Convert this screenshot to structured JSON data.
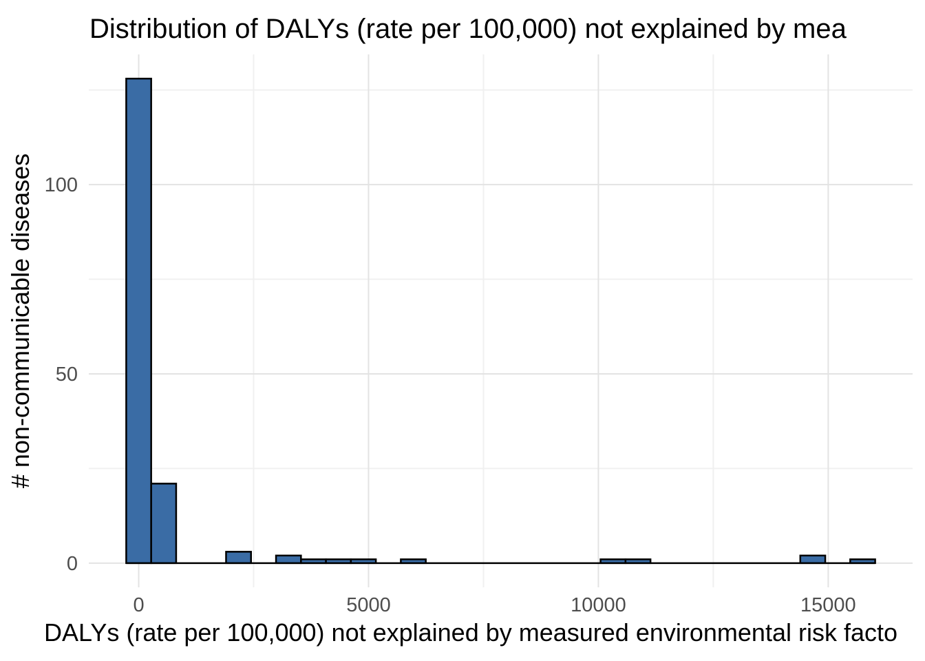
{
  "chart_data": {
    "type": "bar",
    "subtype": "histogram",
    "title": "Distribution of DALYs (rate per 100,000) not explained by mea",
    "xlabel": "DALYs (rate per 100,000) not explained by measured environmental risk facto",
    "ylabel": "# non-communicable diseases",
    "bin_width": 543.1,
    "bin_centers": [
      0,
      543,
      1086,
      1629,
      2172,
      2716,
      3259,
      3802,
      4345,
      4888,
      5431,
      5974,
      6517,
      7060,
      7603,
      8147,
      8690,
      9233,
      9776,
      10319,
      10862,
      11405,
      11948,
      12491,
      13034,
      13578,
      14121,
      14664,
      15207,
      15750
    ],
    "counts": [
      128,
      21,
      0,
      0,
      3,
      0,
      2,
      1,
      1,
      1,
      0,
      1,
      0,
      0,
      0,
      0,
      0,
      0,
      0,
      1,
      1,
      0,
      0,
      0,
      0,
      0,
      0,
      2,
      0,
      1
    ],
    "x_tick_values": [
      0,
      5000,
      10000,
      15000
    ],
    "x_tick_labels": [
      "0",
      "5000",
      "10000",
      "15000"
    ],
    "x_minor_values": [
      2500,
      7500,
      12500
    ],
    "y_tick_values": [
      0,
      50,
      100
    ],
    "y_tick_labels": [
      "0",
      "50",
      "100"
    ],
    "y_minor_values": [
      25,
      75,
      125
    ],
    "xlim": [
      -1086,
      16836
    ],
    "ylim": [
      -6.4,
      134.4
    ],
    "grid": "on",
    "legend": "none",
    "colors": {
      "bar_fill": "#3a6ca5",
      "bar_stroke": "#000000",
      "grid_major": "#e3e3e3",
      "grid_minor": "#f0f0f0",
      "tick_label": "#4d4d4d",
      "text": "#000000",
      "background": "#ffffff"
    }
  }
}
